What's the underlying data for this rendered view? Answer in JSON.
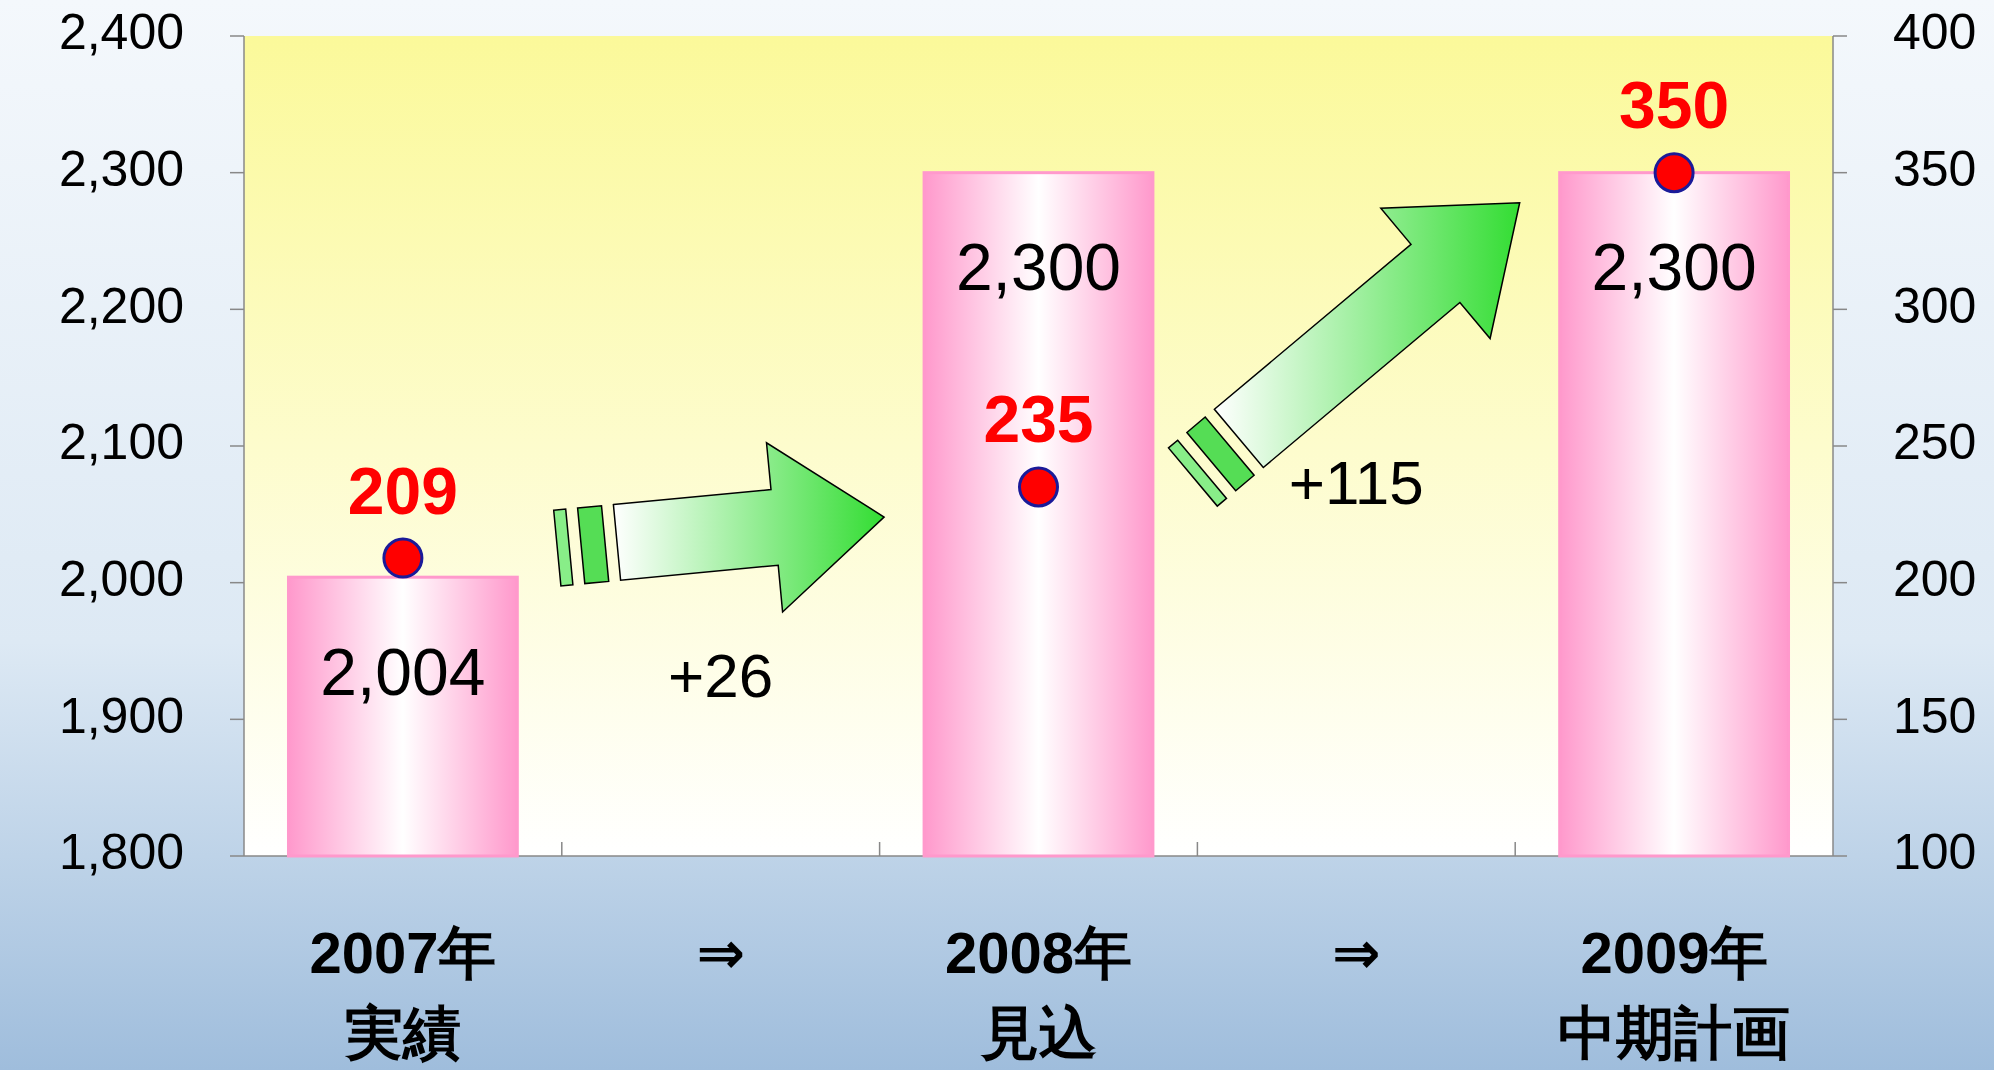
{
  "chart_data": {
    "type": "bar",
    "categories": [
      "2007年実績",
      "⇒",
      "2008年見込",
      "⇒",
      "2009年中期計画"
    ],
    "series": [
      {
        "color": "#ff99cc",
        "values": [
          2004,
          null,
          2300,
          null,
          2300
        ],
        "value_labels": [
          "2,004",
          null,
          "2,300",
          null,
          "2,300"
        ]
      },
      {
        "type": "scatter",
        "axis": "y2",
        "color": "#ff0000",
        "marker": "circle",
        "values": [
          209,
          null,
          235,
          null,
          350
        ],
        "value_labels": [
          "209",
          null,
          "235",
          null,
          "350"
        ]
      }
    ],
    "ylim": [
      1800,
      2400
    ],
    "yticks": [
      {
        "value": 1800,
        "label": "1,800"
      },
      {
        "value": 1900,
        "label": "1,900"
      },
      {
        "value": 2000,
        "label": "2,000"
      },
      {
        "value": 2100,
        "label": "2,100"
      },
      {
        "value": 2200,
        "label": "2,200"
      },
      {
        "value": 2300,
        "label": "2,300"
      },
      {
        "value": 2400,
        "label": "2,400"
      }
    ],
    "y2lim": [
      100,
      400
    ],
    "y2ticks": [
      100,
      150,
      200,
      250,
      300,
      350,
      400
    ],
    "grid": false,
    "annotations": [
      "+26",
      "+115"
    ]
  }
}
